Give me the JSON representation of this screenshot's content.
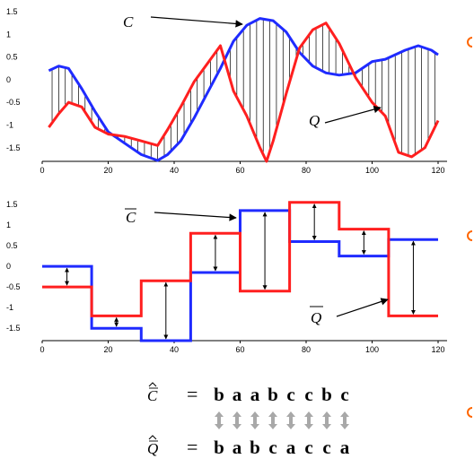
{
  "colors": {
    "C": "#1f2bff",
    "Q": "#ff1f1f",
    "axis": "#000000",
    "double_arrow": "#a8a8a8",
    "edge_mark": "#ff6600"
  },
  "chart_data": [
    {
      "type": "line",
      "xlim": [
        0,
        120
      ],
      "ylim": [
        -1.8,
        1.5
      ],
      "x_ticks": [
        "0",
        "20",
        "40",
        "60",
        "80",
        "100",
        "120"
      ],
      "y_ticks": [
        "1.5",
        "1",
        "0.5",
        "0",
        "-0.5",
        "-1",
        "-1.5"
      ],
      "annotations": [
        "C",
        "Q"
      ],
      "series": [
        {
          "name": "C",
          "color": "#1f2bff",
          "x": [
            2,
            5,
            8,
            12,
            16,
            20,
            25,
            30,
            35,
            38,
            42,
            46,
            50,
            54,
            58,
            62,
            66,
            70,
            74,
            78,
            82,
            86,
            90,
            95,
            100,
            104,
            110,
            114,
            118,
            120
          ],
          "y": [
            0.2,
            0.3,
            0.25,
            -0.2,
            -0.7,
            -1.15,
            -1.4,
            -1.65,
            -1.78,
            -1.65,
            -1.35,
            -0.85,
            -0.3,
            0.25,
            0.85,
            1.2,
            1.35,
            1.3,
            1.05,
            0.6,
            0.3,
            0.15,
            0.1,
            0.15,
            0.4,
            0.45,
            0.65,
            0.75,
            0.65,
            0.55
          ]
        },
        {
          "name": "Q",
          "color": "#ff1f1f",
          "x": [
            2,
            5,
            8,
            12,
            16,
            20,
            25,
            30,
            35,
            38,
            42,
            46,
            50,
            54,
            58,
            62,
            66,
            68,
            70,
            74,
            78,
            82,
            86,
            90,
            95,
            100,
            104,
            108,
            112,
            116,
            120
          ],
          "y": [
            -1.05,
            -0.75,
            -0.5,
            -0.6,
            -1.05,
            -1.2,
            -1.25,
            -1.35,
            -1.45,
            -1.1,
            -0.6,
            -0.05,
            0.35,
            0.75,
            -0.25,
            -0.8,
            -1.5,
            -1.8,
            -1.35,
            -0.3,
            0.7,
            1.1,
            1.25,
            0.8,
            0.05,
            -0.5,
            -0.8,
            -1.6,
            -1.7,
            -1.5,
            -0.9
          ]
        }
      ]
    },
    {
      "type": "line",
      "xlim": [
        0,
        120
      ],
      "ylim": [
        -1.8,
        1.5
      ],
      "x_ticks": [
        "0",
        "20",
        "40",
        "60",
        "80",
        "100",
        "120"
      ],
      "y_ticks": [
        "1.5",
        "1",
        "0.5",
        "0",
        "-0.5",
        "-1",
        "-1.5"
      ],
      "annotations": [
        "C",
        "Q"
      ],
      "segment_boundaries": [
        0,
        15,
        30,
        45,
        60,
        75,
        90,
        105,
        120
      ],
      "series": [
        {
          "name": "C",
          "color": "#1f2bff",
          "values": [
            0,
            -1.5,
            -1.8,
            -0.15,
            1.35,
            0.6,
            0.25,
            0.65
          ]
        },
        {
          "name": "Q",
          "color": "#ff1f1f",
          "values": [
            -0.5,
            -1.2,
            -0.35,
            0.8,
            -0.6,
            1.55,
            0.9,
            -1.2
          ]
        }
      ]
    }
  ],
  "sax": {
    "c_label": "C",
    "q_label": "Q",
    "equals": "=",
    "c_word": [
      "b",
      "a",
      "a",
      "b",
      "c",
      "c",
      "b",
      "c"
    ],
    "q_word": [
      "b",
      "a",
      "b",
      "c",
      "a",
      "c",
      "c",
      "a"
    ]
  }
}
